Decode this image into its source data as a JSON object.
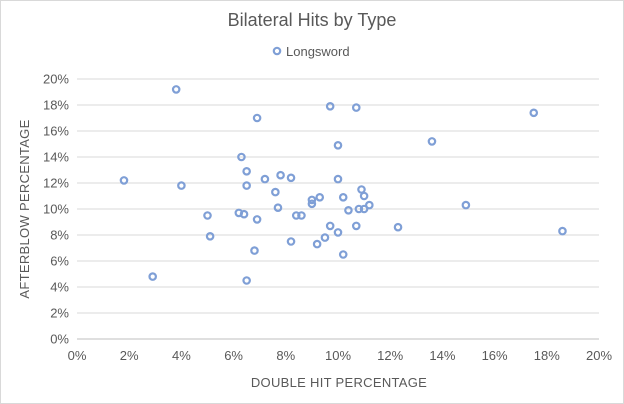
{
  "chart_data": {
    "type": "scatter",
    "title": "Bilateral Hits by Type",
    "xlabel": "DOUBLE HIT PERCENTAGE",
    "ylabel": "AFTERBLOW PERCENTAGE",
    "xlim": [
      0,
      20
    ],
    "ylim": [
      0,
      20
    ],
    "x_ticks": [
      "0%",
      "2%",
      "4%",
      "6%",
      "8%",
      "10%",
      "12%",
      "14%",
      "16%",
      "18%",
      "20%"
    ],
    "y_ticks": [
      "0%",
      "2%",
      "4%",
      "6%",
      "8%",
      "10%",
      "12%",
      "14%",
      "16%",
      "18%",
      "20%"
    ],
    "legend_position": "top",
    "grid": true,
    "series": [
      {
        "name": "Longsword",
        "color": "#7f9fd6",
        "points": [
          [
            1.8,
            12.2
          ],
          [
            2.9,
            4.8
          ],
          [
            3.8,
            19.2
          ],
          [
            4.0,
            11.8
          ],
          [
            5.0,
            9.5
          ],
          [
            5.1,
            7.9
          ],
          [
            6.2,
            9.7
          ],
          [
            6.3,
            14.0
          ],
          [
            6.4,
            9.6
          ],
          [
            6.5,
            12.9
          ],
          [
            6.5,
            11.8
          ],
          [
            6.5,
            4.5
          ],
          [
            6.8,
            6.8
          ],
          [
            6.9,
            17.0
          ],
          [
            6.9,
            9.2
          ],
          [
            7.2,
            12.3
          ],
          [
            7.6,
            11.3
          ],
          [
            7.7,
            10.1
          ],
          [
            7.8,
            12.6
          ],
          [
            8.2,
            7.5
          ],
          [
            8.2,
            12.4
          ],
          [
            8.4,
            9.5
          ],
          [
            8.6,
            9.5
          ],
          [
            9.0,
            10.7
          ],
          [
            9.0,
            10.4
          ],
          [
            9.2,
            7.3
          ],
          [
            9.3,
            10.9
          ],
          [
            9.5,
            7.8
          ],
          [
            9.7,
            17.9
          ],
          [
            9.7,
            8.7
          ],
          [
            10.0,
            12.3
          ],
          [
            10.0,
            8.2
          ],
          [
            10.0,
            14.9
          ],
          [
            10.2,
            6.5
          ],
          [
            10.2,
            10.9
          ],
          [
            10.4,
            9.9
          ],
          [
            10.7,
            8.7
          ],
          [
            10.7,
            17.8
          ],
          [
            10.8,
            10.0
          ],
          [
            10.9,
            11.5
          ],
          [
            11.0,
            11.0
          ],
          [
            11.0,
            10.0
          ],
          [
            11.2,
            10.3
          ],
          [
            12.3,
            8.6
          ],
          [
            13.6,
            15.2
          ],
          [
            14.9,
            10.3
          ],
          [
            17.5,
            17.4
          ],
          [
            18.6,
            8.3
          ]
        ]
      }
    ]
  }
}
